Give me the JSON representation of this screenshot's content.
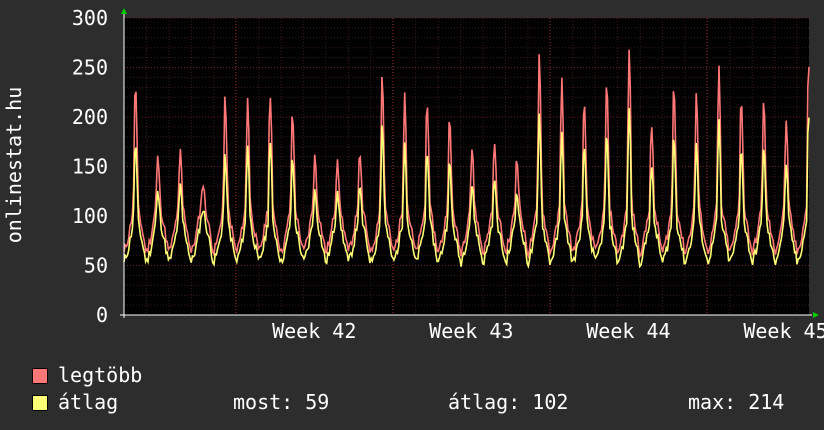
{
  "y_axis_title": "onlinestat.hu",
  "legend": [
    {
      "label": "legtöbb",
      "color": "#ff7777"
    },
    {
      "label": "átlag",
      "color": "#ffff77"
    }
  ],
  "stats": {
    "now_label": "most:",
    "now_value": "59",
    "avg_label": "átlag:",
    "avg_value": "102",
    "max_label": "max:",
    "max_value": "214"
  },
  "colors": {
    "background": "#2d2d2d",
    "plot": "#000000",
    "grid": "#5a1e1e",
    "axis": "#ffffff",
    "arrow": "#00cc00"
  },
  "chart_data": {
    "type": "line",
    "ylim": [
      0,
      300
    ],
    "yticks": [
      "0",
      "50",
      "100",
      "150",
      "200",
      "250",
      "300"
    ],
    "xticks": [
      "Week 42",
      "Week 43",
      "Week 44",
      "Week 45"
    ],
    "grid": true,
    "x_range": [
      "Week 41 (Wed)",
      "Week 45 (end)"
    ],
    "series": [
      {
        "name": "legtöbb",
        "color": "#ff7777",
        "peaks": [
          248,
          162,
          165,
          135,
          228,
          224,
          237,
          212,
          162,
          160,
          165,
          252,
          231,
          233,
          204,
          170,
          175,
          165,
          275,
          245,
          225,
          245,
          275,
          200,
          245,
          230,
          252,
          235,
          225,
          200,
          272,
          180
        ]
      },
      {
        "name": "átlag",
        "color": "#ffff77",
        "peaks": [
          183,
          125,
          130,
          108,
          165,
          175,
          186,
          163,
          126,
          128,
          130,
          200,
          180,
          178,
          158,
          132,
          138,
          128,
          212,
          190,
          177,
          190,
          215,
          155,
          190,
          178,
          198,
          180,
          175,
          155,
          214,
          140
        ]
      }
    ]
  }
}
